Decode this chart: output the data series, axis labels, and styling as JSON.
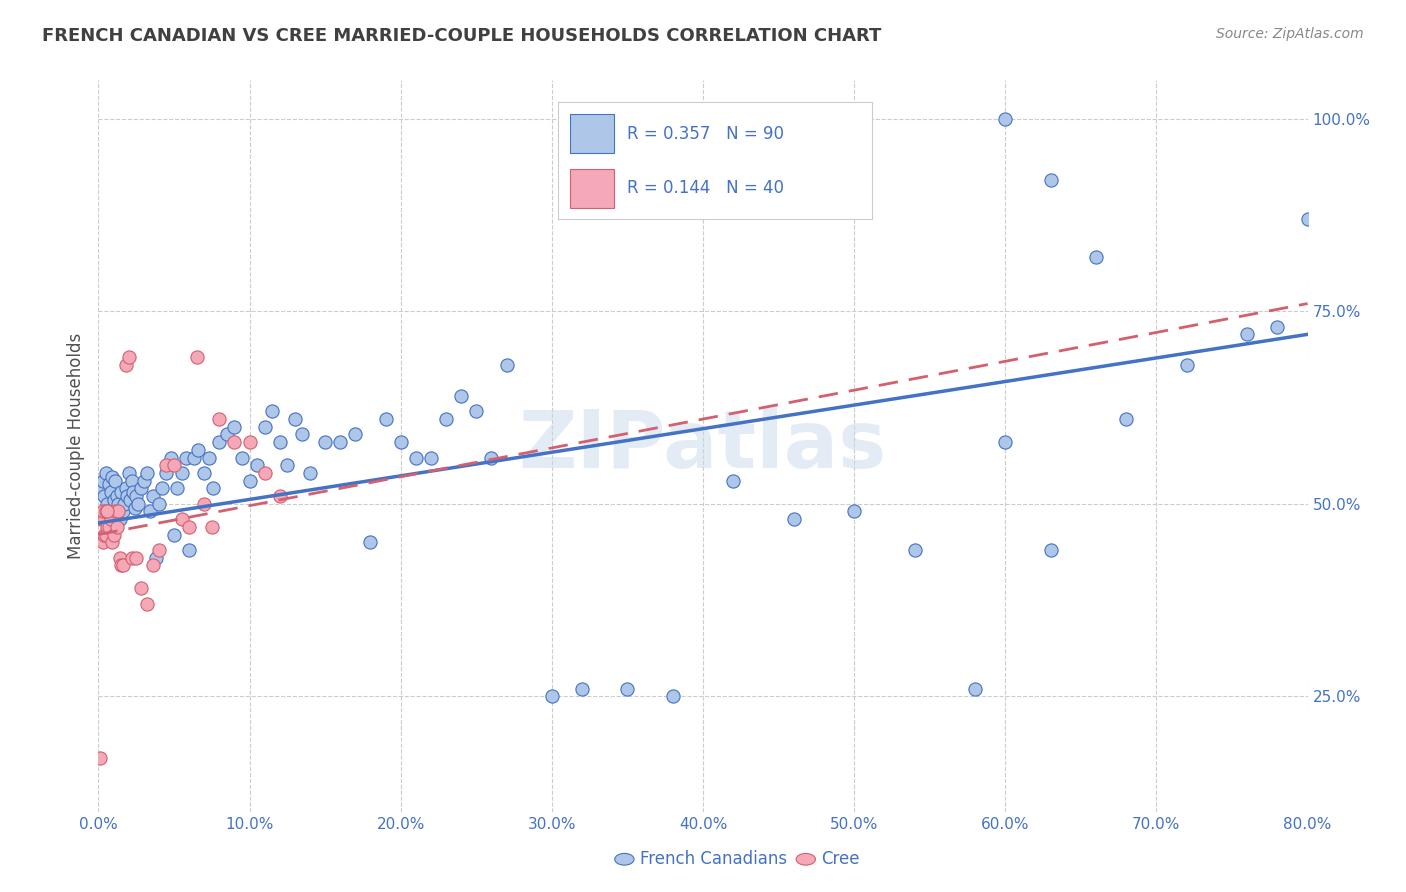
{
  "title": "FRENCH CANADIAN VS CREE MARRIED-COUPLE HOUSEHOLDS CORRELATION CHART",
  "source": "Source: ZipAtlas.com",
  "ylabel": "Married-couple Households",
  "yticks": [
    "25.0%",
    "50.0%",
    "75.0%",
    "100.0%"
  ],
  "ytick_vals": [
    0.25,
    0.5,
    0.75,
    1.0
  ],
  "legend_label1": "French Canadians",
  "legend_label2": "Cree",
  "legend_R1": "R = 0.357",
  "legend_N1": "N = 90",
  "legend_R2": "R = 0.144",
  "legend_N2": "N = 40",
  "fc_color": "#aec6e8",
  "cree_color": "#f4a8b8",
  "fc_line_color": "#4472c4",
  "cree_line_color": "#d45f6e",
  "watermark": "ZIPatlas",
  "watermark_color": "#c8d8ec",
  "background_color": "#ffffff",
  "blue_text_color": "#4472c4",
  "title_color": "#404040",
  "fc_scatter_x": [
    0.002,
    0.003,
    0.004,
    0.005,
    0.006,
    0.007,
    0.008,
    0.009,
    0.01,
    0.011,
    0.012,
    0.013,
    0.014,
    0.015,
    0.016,
    0.017,
    0.018,
    0.019,
    0.02,
    0.021,
    0.022,
    0.023,
    0.024,
    0.025,
    0.026,
    0.028,
    0.03,
    0.032,
    0.034,
    0.036,
    0.038,
    0.04,
    0.042,
    0.045,
    0.048,
    0.05,
    0.052,
    0.055,
    0.058,
    0.06,
    0.063,
    0.066,
    0.07,
    0.073,
    0.076,
    0.08,
    0.085,
    0.09,
    0.095,
    0.1,
    0.105,
    0.11,
    0.115,
    0.12,
    0.125,
    0.13,
    0.135,
    0.14,
    0.15,
    0.16,
    0.17,
    0.18,
    0.19,
    0.2,
    0.21,
    0.22,
    0.23,
    0.24,
    0.25,
    0.26,
    0.27,
    0.3,
    0.32,
    0.35,
    0.38,
    0.42,
    0.46,
    0.5,
    0.54,
    0.58,
    0.6,
    0.63,
    0.68,
    0.72,
    0.76,
    0.78,
    0.6,
    0.63,
    0.66,
    0.8
  ],
  "fc_scatter_y": [
    0.52,
    0.53,
    0.51,
    0.54,
    0.5,
    0.525,
    0.515,
    0.535,
    0.505,
    0.53,
    0.51,
    0.5,
    0.48,
    0.515,
    0.49,
    0.5,
    0.52,
    0.51,
    0.54,
    0.505,
    0.53,
    0.515,
    0.495,
    0.51,
    0.5,
    0.52,
    0.53,
    0.54,
    0.49,
    0.51,
    0.43,
    0.5,
    0.52,
    0.54,
    0.56,
    0.46,
    0.52,
    0.54,
    0.56,
    0.44,
    0.56,
    0.57,
    0.54,
    0.56,
    0.52,
    0.58,
    0.59,
    0.6,
    0.56,
    0.53,
    0.55,
    0.6,
    0.62,
    0.58,
    0.55,
    0.61,
    0.59,
    0.54,
    0.58,
    0.58,
    0.59,
    0.45,
    0.61,
    0.58,
    0.56,
    0.56,
    0.61,
    0.64,
    0.62,
    0.56,
    0.68,
    0.25,
    0.26,
    0.26,
    0.25,
    0.53,
    0.48,
    0.49,
    0.44,
    0.26,
    0.58,
    0.44,
    0.61,
    0.68,
    0.72,
    0.73,
    1.0,
    0.92,
    0.82,
    0.87
  ],
  "cree_scatter_x": [
    0.001,
    0.002,
    0.003,
    0.004,
    0.004,
    0.005,
    0.006,
    0.007,
    0.008,
    0.009,
    0.01,
    0.011,
    0.012,
    0.013,
    0.014,
    0.015,
    0.016,
    0.018,
    0.02,
    0.022,
    0.003,
    0.005,
    0.006,
    0.025,
    0.028,
    0.032,
    0.036,
    0.04,
    0.045,
    0.05,
    0.055,
    0.06,
    0.065,
    0.07,
    0.075,
    0.08,
    0.09,
    0.1,
    0.11,
    0.12
  ],
  "cree_scatter_y": [
    0.17,
    0.48,
    0.45,
    0.48,
    0.46,
    0.46,
    0.47,
    0.47,
    0.48,
    0.45,
    0.46,
    0.49,
    0.47,
    0.49,
    0.43,
    0.42,
    0.42,
    0.68,
    0.69,
    0.43,
    0.49,
    0.49,
    0.49,
    0.43,
    0.39,
    0.37,
    0.42,
    0.44,
    0.55,
    0.55,
    0.48,
    0.47,
    0.69,
    0.5,
    0.47,
    0.61,
    0.58,
    0.58,
    0.54,
    0.51
  ],
  "xlim": [
    0.0,
    0.8
  ],
  "ylim": [
    0.1,
    1.05
  ],
  "fc_line_y_start": 0.475,
  "fc_line_y_end": 0.72,
  "cree_line_y_start": 0.46,
  "cree_line_y_end": 0.76
}
